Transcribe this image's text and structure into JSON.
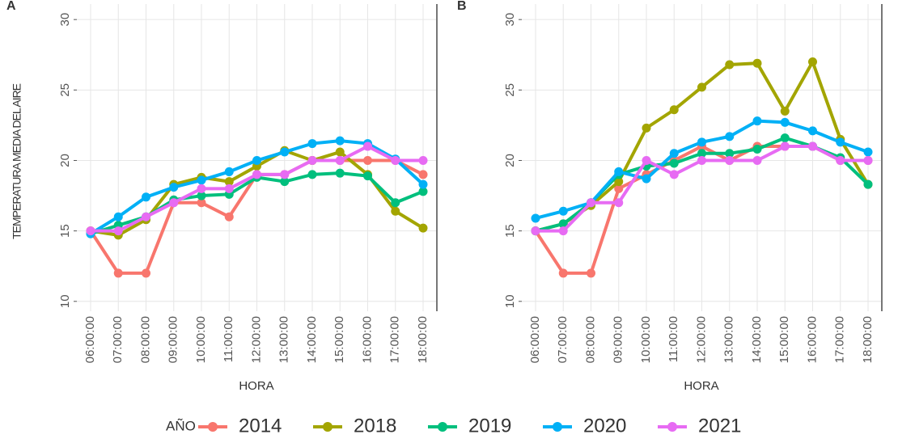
{
  "chart_data": [
    {
      "type": "line",
      "title": "A",
      "ylabel": "TEMPERATURA MEDIA DEL AIRE",
      "xlabel": "HORA",
      "categories": [
        "06:00:00",
        "07:00:00",
        "08:00:00",
        "09:00:00",
        "10:00:00",
        "11:00:00",
        "12:00:00",
        "13:00:00",
        "14:00:00",
        "15:00:00",
        "16:00:00",
        "17:00:00",
        "18:00:00"
      ],
      "ylim": [
        9.3,
        31.1
      ],
      "yticks": [
        10,
        15,
        20,
        25,
        30
      ],
      "grid": true,
      "series": [
        {
          "name": "2014",
          "color": "#F8766D",
          "values": [
            15,
            12,
            12,
            17,
            17,
            16,
            19,
            19,
            20,
            20,
            20,
            20,
            19
          ]
        },
        {
          "name": "2018",
          "color": "#A3A500",
          "values": [
            15,
            14.7,
            15.8,
            18.3,
            18.8,
            18.5,
            19.6,
            20.7,
            20,
            20.6,
            19,
            16.4,
            15.2
          ]
        },
        {
          "name": "2019",
          "color": "#00BF7D",
          "values": [
            14.8,
            15.4,
            16,
            17.2,
            17.5,
            17.6,
            18.8,
            18.5,
            19,
            19.1,
            18.9,
            17,
            17.8
          ]
        },
        {
          "name": "2020",
          "color": "#00B0F6",
          "values": [
            14.8,
            16,
            17.4,
            18.1,
            18.6,
            19.2,
            20,
            20.6,
            21.2,
            21.4,
            21.2,
            20.1,
            18.3
          ]
        },
        {
          "name": "2021",
          "color": "#E76BF3",
          "values": [
            15,
            15,
            16,
            17,
            18,
            18,
            19,
            19,
            20,
            20,
            21,
            20,
            20
          ]
        }
      ]
    },
    {
      "type": "line",
      "title": "B",
      "xlabel": "HORA",
      "categories": [
        "06:00:00",
        "07:00:00",
        "08:00:00",
        "09:00:00",
        "10:00:00",
        "11:00:00",
        "12:00:00",
        "13:00:00",
        "14:00:00",
        "15:00:00",
        "16:00:00",
        "17:00:00",
        "18:00:00"
      ],
      "ylim": [
        9.3,
        31.1
      ],
      "yticks": [
        10,
        15,
        20,
        25,
        30
      ],
      "grid": true,
      "series": [
        {
          "name": "2014",
          "color": "#F8766D",
          "values": [
            15,
            12,
            12,
            18,
            19,
            20,
            21,
            20,
            21,
            21,
            21,
            20,
            20
          ]
        },
        {
          "name": "2018",
          "color": "#A3A500",
          "values": [
            15,
            15.5,
            16.8,
            18.5,
            22.3,
            23.6,
            25.2,
            26.8,
            26.9,
            23.5,
            27,
            21.5,
            18.3
          ]
        },
        {
          "name": "2019",
          "color": "#00BF7D",
          "values": [
            15,
            15.5,
            17,
            19,
            19.6,
            19.8,
            20.5,
            20.5,
            20.8,
            21.6,
            21,
            20.2,
            18.3
          ]
        },
        {
          "name": "2020",
          "color": "#00B0F6",
          "values": [
            15.9,
            16.4,
            17,
            19.2,
            18.7,
            20.5,
            21.3,
            21.7,
            22.8,
            22.7,
            22.1,
            21.3,
            20.6
          ]
        },
        {
          "name": "2021",
          "color": "#E76BF3",
          "values": [
            15,
            15,
            17,
            17,
            20,
            19,
            20,
            20,
            20,
            21,
            21,
            20,
            20
          ]
        }
      ]
    }
  ],
  "legend": {
    "title": "AÑO",
    "position": "bottom"
  }
}
